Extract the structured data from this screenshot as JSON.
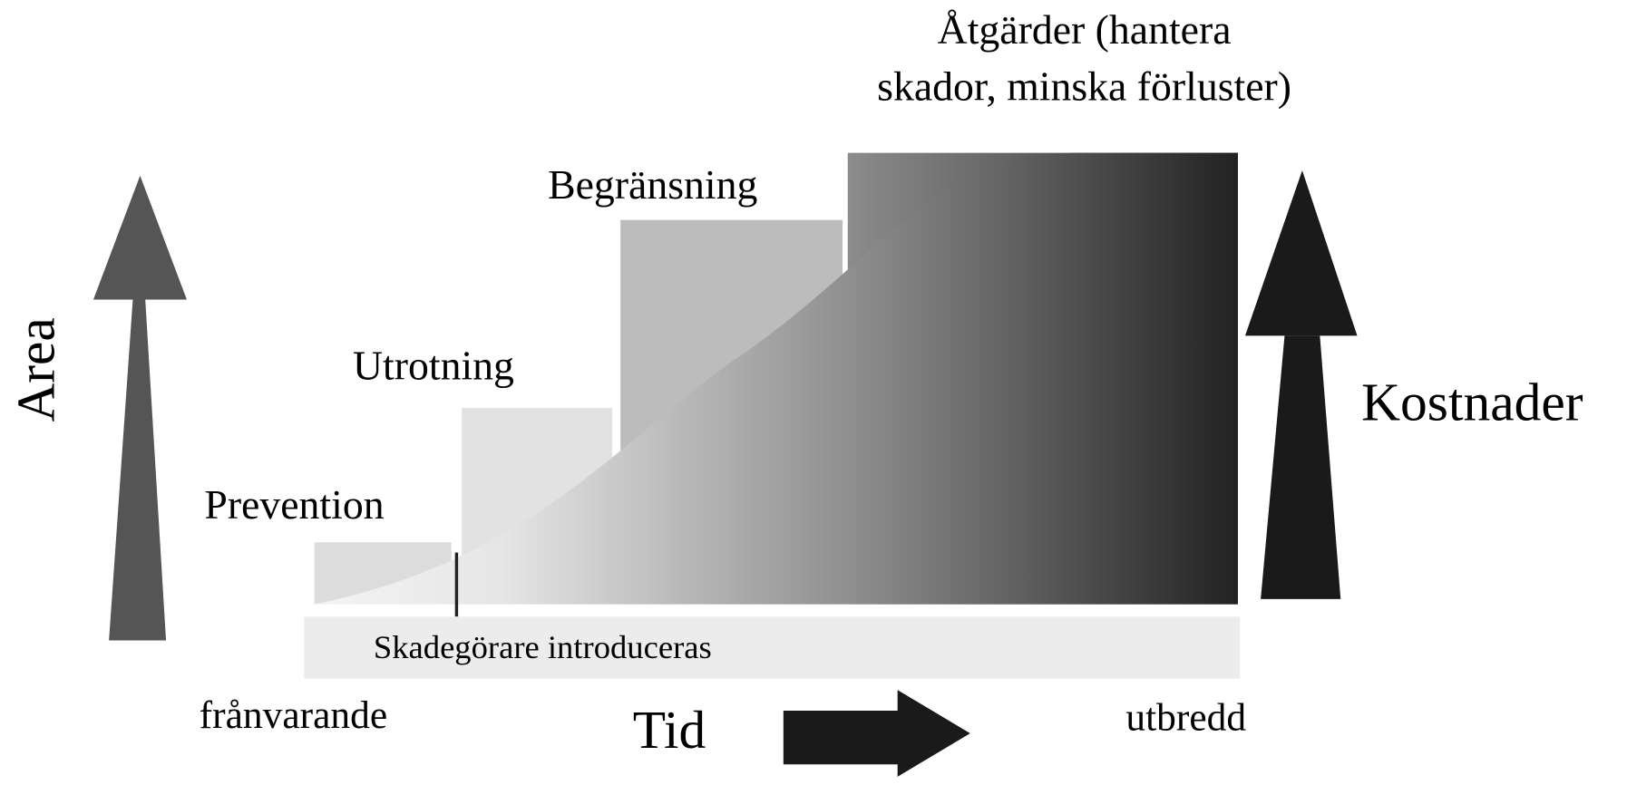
{
  "stages": [
    {
      "label": [
        "Prevention"
      ]
    },
    {
      "label": [
        "Utrotning"
      ]
    },
    {
      "label": [
        "Begränsning"
      ]
    },
    {
      "label": [
        "Åtgärder (hantera",
        "skador, minska förluster)"
      ]
    }
  ],
  "y_axis_label": "Area",
  "cost_label": "Kostnader",
  "time_label": "Tid",
  "baseline_label": "Skadegörare introduceras",
  "start_label": "frånvarande",
  "end_label": "utbredd"
}
